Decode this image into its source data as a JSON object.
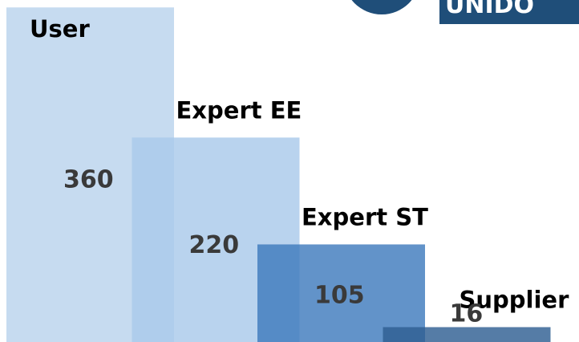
{
  "chart_data": {
    "type": "bar",
    "categories": [
      "User",
      "Expert EE",
      "Expert ST",
      "Supplier"
    ],
    "values": [
      360,
      220,
      105,
      16
    ],
    "colors": [
      "#c6dbf0",
      "#a9c9ea",
      "#3f7bbd",
      "#2f5f92"
    ],
    "ylim": [
      0,
      368
    ]
  },
  "logo": {
    "text": "UNIDO"
  }
}
